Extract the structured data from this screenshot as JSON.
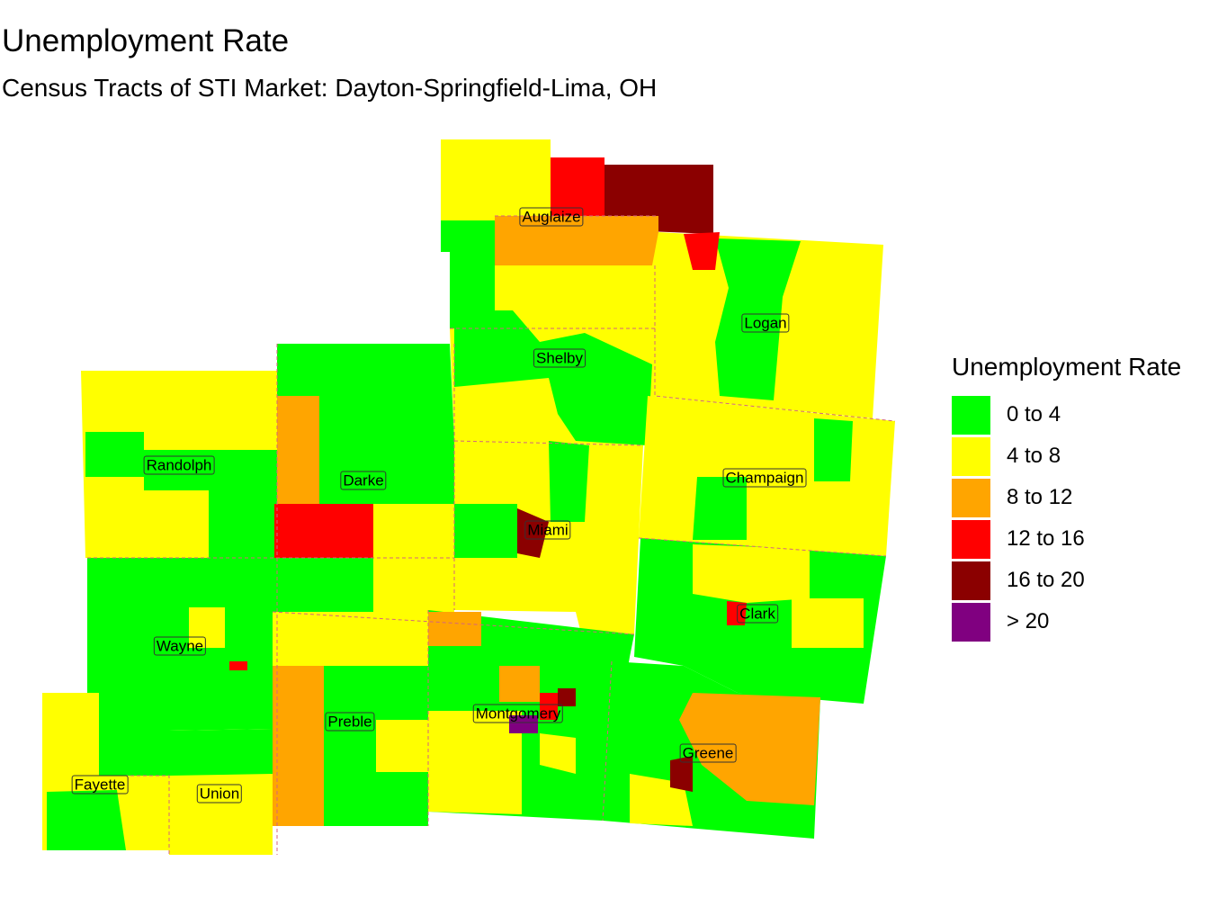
{
  "title": "Unemployment Rate",
  "subtitle": "Census Tracts of STI Market: Dayton-Springfield-Lima, OH",
  "legend": {
    "title": "Unemployment Rate",
    "items": [
      {
        "label": "0 to 4",
        "color": "#00FF00"
      },
      {
        "label": "4 to 8",
        "color": "#FFFF00"
      },
      {
        "label": "8 to 12",
        "color": "#FFA500"
      },
      {
        "label": "12 to 16",
        "color": "#FF0000"
      },
      {
        "label": "16 to 20",
        "color": "#8B0000"
      },
      {
        "label": "> 20",
        "color": "#800080"
      }
    ]
  },
  "counties": [
    {
      "name": "Auglaize"
    },
    {
      "name": "Logan"
    },
    {
      "name": "Shelby"
    },
    {
      "name": "Randolph"
    },
    {
      "name": "Darke"
    },
    {
      "name": "Champaign"
    },
    {
      "name": "Miami"
    },
    {
      "name": "Clark"
    },
    {
      "name": "Wayne"
    },
    {
      "name": "Montgomery"
    },
    {
      "name": "Preble"
    },
    {
      "name": "Greene"
    },
    {
      "name": "Fayette"
    },
    {
      "name": "Union"
    }
  ]
}
